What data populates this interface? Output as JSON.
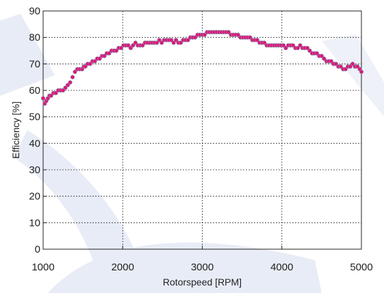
{
  "chart_data": {
    "type": "scatter",
    "title": "",
    "xlabel": "Rotorspeed [RPM]",
    "ylabel": "Efficiency [%]",
    "xlim": [
      1000,
      5000
    ],
    "ylim": [
      0,
      90
    ],
    "xticks": [
      1000,
      2000,
      3000,
      4000,
      5000
    ],
    "yticks": [
      0,
      10,
      20,
      30,
      40,
      50,
      60,
      70,
      80,
      90
    ],
    "grid": true,
    "legend": "none",
    "colors": {
      "marker_fill": "#e0147e",
      "marker_edge": "#8a8fa0",
      "grid": "#333333",
      "decor": "#e8ecf6"
    },
    "series": [
      {
        "x": [
          1000,
          1020,
          1040,
          1060,
          1080,
          1100,
          1130,
          1160,
          1190,
          1220,
          1250,
          1280,
          1310,
          1340,
          1370,
          1400,
          1430,
          1460,
          1490,
          1510,
          1530,
          1560,
          1590,
          1620,
          1650,
          1680,
          1710,
          1740,
          1770,
          1800,
          1830,
          1860,
          1890,
          1920,
          1950,
          1980,
          2010,
          2040,
          2070,
          2100,
          2130,
          2160,
          2190,
          2220,
          2250,
          2280,
          2310,
          2340,
          2370,
          2400,
          2430,
          2460,
          2490,
          2520,
          2550,
          2580,
          2610,
          2640,
          2670,
          2700,
          2730,
          2760,
          2790,
          2820,
          2850,
          2880,
          2910,
          2940,
          2970,
          3000,
          3030,
          3060,
          3090,
          3120,
          3150,
          3180,
          3210,
          3240,
          3270,
          3300,
          3330,
          3360,
          3390,
          3420,
          3450,
          3480,
          3510,
          3540,
          3570,
          3600,
          3630,
          3660,
          3690,
          3720,
          3750,
          3780,
          3810,
          3840,
          3870,
          3900,
          3930,
          3960,
          3990,
          4020,
          4050,
          4080,
          4110,
          4140,
          4170,
          4200,
          4230,
          4260,
          4290,
          4320,
          4350,
          4380,
          4410,
          4440,
          4470,
          4500,
          4530,
          4560,
          4590,
          4620,
          4650,
          4680,
          4710,
          4740,
          4770,
          4800,
          4830,
          4860,
          4890,
          4920,
          4950,
          4980,
          5000
        ],
        "y": [
          57,
          55,
          56,
          57,
          58,
          58,
          59,
          59,
          60,
          60,
          60,
          61,
          62,
          63,
          65,
          67,
          68,
          68,
          68,
          69,
          69,
          70,
          70,
          71,
          71,
          72,
          72,
          73,
          73,
          74,
          74,
          75,
          75,
          75,
          76,
          76,
          77,
          77,
          77,
          76,
          77,
          78,
          77,
          77,
          77,
          78,
          78,
          78,
          78,
          78,
          78,
          79,
          78,
          79,
          79,
          79,
          79,
          78,
          79,
          78,
          78,
          79,
          79,
          79,
          80,
          80,
          80,
          81,
          81,
          81,
          81,
          82,
          82,
          82,
          82,
          82,
          82,
          82,
          82,
          82,
          82,
          81,
          81,
          81,
          81,
          80,
          80,
          80,
          80,
          80,
          79,
          79,
          79,
          78,
          78,
          78,
          77,
          77,
          77,
          77,
          77,
          77,
          77,
          77,
          76,
          77,
          77,
          77,
          76,
          76,
          77,
          76,
          76,
          76,
          75,
          74,
          74,
          74,
          73,
          73,
          72,
          71,
          71,
          71,
          70,
          70,
          69,
          69,
          68,
          68,
          69,
          69,
          70,
          69,
          69,
          68,
          67
        ]
      }
    ]
  }
}
